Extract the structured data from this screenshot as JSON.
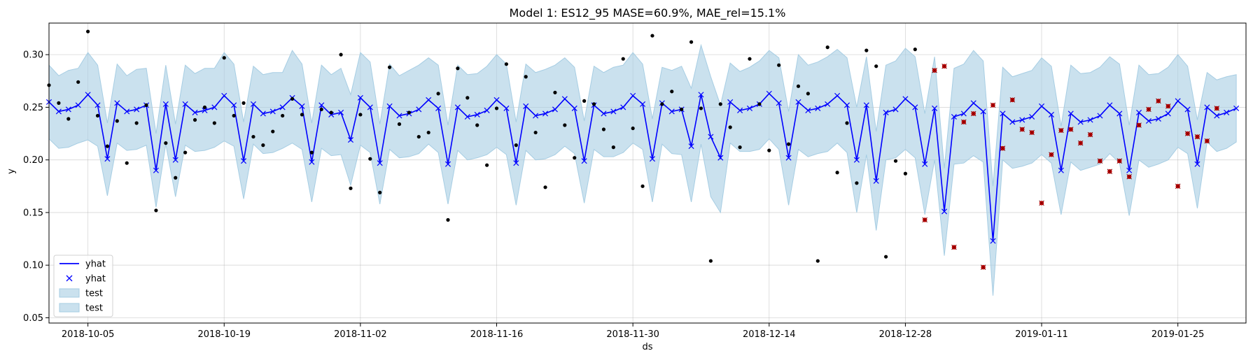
{
  "chart_data": {
    "type": "line",
    "title": "Model 1: ES12_95 MASE=60.9%, MAE_rel=15.1%",
    "xlabel": "ds",
    "ylabel": "y",
    "ylim": [
      0.045,
      0.33
    ],
    "yticks": [
      "0.05",
      "0.10",
      "0.15",
      "0.20",
      "0.25",
      "0.30"
    ],
    "xticks": [
      "2018-10-05",
      "2018-10-19",
      "2018-11-02",
      "2018-11-16",
      "2018-11-30",
      "2018-12-14",
      "2018-12-28",
      "2019-01-11",
      "2019-01-25"
    ],
    "x_start": "2018-10-01",
    "x_end": "2019-02-01",
    "grid": true,
    "legend_placement": "lower-left",
    "legend": [
      "yhat",
      "yhat",
      "test",
      "test"
    ],
    "colors": {
      "line": "#0000ff",
      "band": "#a6cde3",
      "actual": "#000000",
      "test_point": "#cc0000"
    },
    "yhat": [
      0.255,
      0.246,
      0.248,
      0.252,
      0.262,
      0.252,
      0.201,
      0.254,
      0.246,
      0.248,
      0.252,
      0.19,
      0.253,
      0.2,
      0.253,
      0.245,
      0.247,
      0.25,
      0.261,
      0.252,
      0.199,
      0.253,
      0.244,
      0.246,
      0.25,
      0.259,
      0.251,
      0.198,
      0.252,
      0.243,
      0.245,
      0.219,
      0.259,
      0.25,
      0.197,
      0.251,
      0.242,
      0.244,
      0.248,
      0.257,
      0.249,
      0.196,
      0.25,
      0.241,
      0.243,
      0.247,
      0.257,
      0.249,
      0.197,
      0.251,
      0.242,
      0.244,
      0.248,
      0.258,
      0.249,
      0.199,
      0.252,
      0.244,
      0.246,
      0.25,
      0.261,
      0.253,
      0.201,
      0.254,
      0.246,
      0.248,
      0.213,
      0.262,
      0.222,
      0.202,
      0.255,
      0.247,
      0.249,
      0.253,
      0.263,
      0.254,
      0.202,
      0.255,
      0.247,
      0.249,
      0.253,
      0.261,
      0.252,
      0.2,
      0.252,
      0.18,
      0.245,
      0.248,
      0.258,
      0.25,
      0.196,
      0.249,
      0.151,
      0.241,
      0.244,
      0.254,
      0.246,
      0.123,
      0.244,
      0.236,
      0.238,
      0.241,
      0.251,
      0.243,
      0.19,
      0.244,
      0.236,
      0.238,
      0.242,
      0.252,
      0.244,
      0.19,
      0.245,
      0.237,
      0.239,
      0.244,
      0.256,
      0.248,
      0.196,
      0.25,
      0.242,
      0.245,
      0.249
    ],
    "upper": [
      0.29,
      0.28,
      0.285,
      0.287,
      0.302,
      0.29,
      0.235,
      0.291,
      0.28,
      0.286,
      0.287,
      0.225,
      0.29,
      0.234,
      0.29,
      0.282,
      0.287,
      0.287,
      0.302,
      0.291,
      0.236,
      0.289,
      0.281,
      0.283,
      0.283,
      0.304,
      0.291,
      0.235,
      0.29,
      0.281,
      0.287,
      0.262,
      0.302,
      0.293,
      0.234,
      0.291,
      0.28,
      0.285,
      0.29,
      0.297,
      0.29,
      0.233,
      0.29,
      0.281,
      0.282,
      0.289,
      0.3,
      0.291,
      0.236,
      0.291,
      0.283,
      0.286,
      0.29,
      0.297,
      0.288,
      0.237,
      0.289,
      0.283,
      0.288,
      0.29,
      0.302,
      0.291,
      0.239,
      0.288,
      0.285,
      0.289,
      0.268,
      0.309,
      0.279,
      0.252,
      0.292,
      0.284,
      0.288,
      0.294,
      0.304,
      0.297,
      0.246,
      0.3,
      0.29,
      0.293,
      0.298,
      0.305,
      0.297,
      0.25,
      0.298,
      0.227,
      0.29,
      0.294,
      0.306,
      0.298,
      0.244,
      0.298,
      0.192,
      0.287,
      0.291,
      0.304,
      0.294,
      0.175,
      0.288,
      0.279,
      0.282,
      0.285,
      0.297,
      0.289,
      0.232,
      0.29,
      0.282,
      0.283,
      0.288,
      0.298,
      0.291,
      0.233,
      0.29,
      0.281,
      0.282,
      0.288,
      0.3,
      0.289,
      0.238,
      0.283,
      0.276,
      0.279,
      0.281
    ],
    "lower": [
      0.22,
      0.211,
      0.212,
      0.216,
      0.219,
      0.213,
      0.166,
      0.216,
      0.209,
      0.21,
      0.214,
      0.155,
      0.215,
      0.165,
      0.214,
      0.208,
      0.209,
      0.212,
      0.218,
      0.213,
      0.163,
      0.215,
      0.206,
      0.207,
      0.211,
      0.216,
      0.21,
      0.16,
      0.211,
      0.204,
      0.205,
      0.176,
      0.214,
      0.207,
      0.158,
      0.21,
      0.202,
      0.203,
      0.206,
      0.215,
      0.207,
      0.158,
      0.209,
      0.2,
      0.202,
      0.205,
      0.212,
      0.205,
      0.157,
      0.209,
      0.2,
      0.201,
      0.205,
      0.213,
      0.206,
      0.159,
      0.21,
      0.203,
      0.203,
      0.207,
      0.216,
      0.21,
      0.16,
      0.215,
      0.206,
      0.205,
      0.16,
      0.215,
      0.165,
      0.15,
      0.216,
      0.208,
      0.208,
      0.21,
      0.22,
      0.21,
      0.157,
      0.21,
      0.203,
      0.206,
      0.208,
      0.216,
      0.207,
      0.15,
      0.205,
      0.133,
      0.2,
      0.202,
      0.21,
      0.202,
      0.148,
      0.2,
      0.109,
      0.196,
      0.197,
      0.204,
      0.198,
      0.071,
      0.2,
      0.192,
      0.194,
      0.197,
      0.205,
      0.197,
      0.148,
      0.198,
      0.19,
      0.193,
      0.196,
      0.206,
      0.197,
      0.147,
      0.2,
      0.193,
      0.196,
      0.2,
      0.212,
      0.206,
      0.154,
      0.217,
      0.208,
      0.211,
      0.217
    ],
    "actual": [
      0.271,
      0.254,
      0.239,
      0.274,
      0.322,
      0.242,
      0.213,
      0.237,
      0.197,
      0.235,
      0.252,
      0.152,
      0.216,
      0.183,
      0.207,
      0.238,
      0.25,
      0.235,
      0.297,
      0.242,
      0.254,
      0.222,
      0.214,
      0.227,
      0.242,
      0.258,
      0.243,
      0.207,
      0.248,
      0.245,
      0.3,
      0.173,
      0.243,
      0.201,
      0.169,
      0.288,
      0.234,
      0.245,
      0.222,
      0.226,
      0.263,
      0.143,
      0.287,
      0.259,
      0.233,
      0.195,
      0.249,
      0.291,
      0.214,
      0.279,
      0.226,
      0.174,
      0.264,
      0.233,
      0.202,
      0.256,
      0.253,
      0.229,
      0.212,
      0.296,
      0.23,
      0.175,
      0.318,
      0.253,
      0.265,
      0.248,
      0.312,
      0.249,
      0.104,
      0.253,
      0.231,
      0.212,
      0.296,
      0.253,
      0.209,
      0.29,
      0.215,
      0.27,
      0.263,
      0.104,
      0.307,
      0.188,
      0.235,
      0.178,
      0.304,
      0.289,
      0.108,
      0.199,
      0.187,
      0.305
    ],
    "test": [
      0.143,
      0.285,
      0.289,
      0.117,
      0.236,
      0.244,
      0.098,
      0.252,
      0.211,
      0.257,
      0.229,
      0.226,
      0.159,
      0.205,
      0.228,
      0.229,
      0.216,
      0.224,
      0.199,
      0.189,
      0.199,
      0.184,
      0.233,
      0.248,
      0.256,
      0.251,
      0.175,
      0.225,
      0.222,
      0.218,
      0.249
    ]
  }
}
